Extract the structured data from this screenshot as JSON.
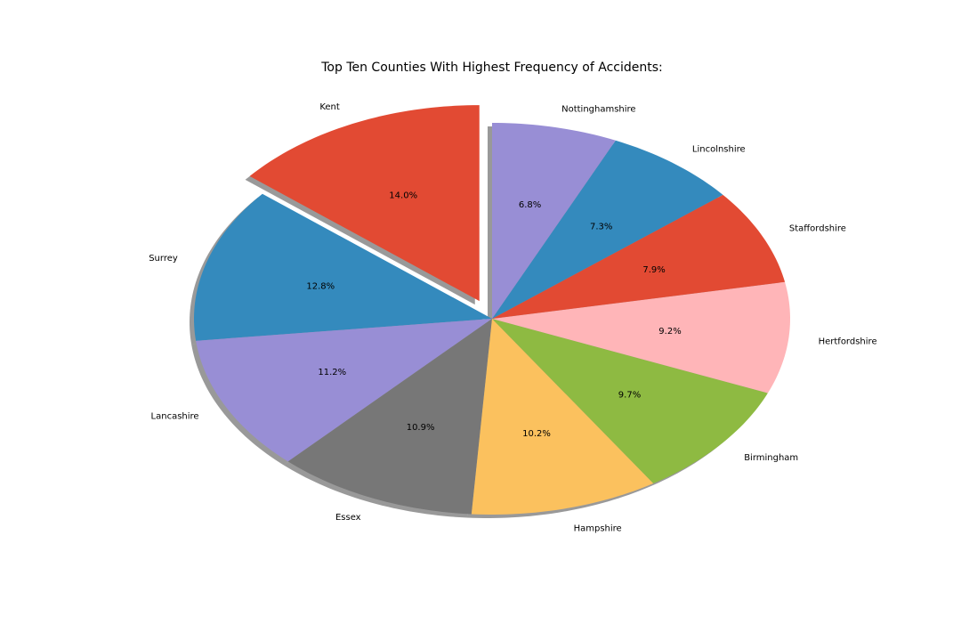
{
  "chart_data": {
    "type": "pie",
    "title": "Top Ten Counties With Highest Frequency of Accidents:",
    "shadow": true,
    "start_angle_deg": 90,
    "direction": "counterclockwise",
    "slices": [
      {
        "label": "Kent",
        "percent": 14.0,
        "pct_text": "14.0%",
        "color": "#E24A33",
        "exploded": true
      },
      {
        "label": "Surrey",
        "percent": 12.8,
        "pct_text": "12.8%",
        "color": "#348ABD",
        "exploded": false
      },
      {
        "label": "Lancashire",
        "percent": 11.2,
        "pct_text": "11.2%",
        "color": "#988ED5",
        "exploded": false
      },
      {
        "label": "Essex",
        "percent": 10.9,
        "pct_text": "10.9%",
        "color": "#777777",
        "exploded": false
      },
      {
        "label": "Hampshire",
        "percent": 10.2,
        "pct_text": "10.2%",
        "color": "#FBC15E",
        "exploded": false
      },
      {
        "label": "Birmingham",
        "percent": 9.7,
        "pct_text": "9.7%",
        "color": "#8EBA42",
        "exploded": false
      },
      {
        "label": "Hertfordshire",
        "percent": 9.2,
        "pct_text": "9.2%",
        "color": "#FFB5B8",
        "exploded": false
      },
      {
        "label": "Staffordshire",
        "percent": 7.9,
        "pct_text": "7.9%",
        "color": "#E24A33",
        "exploded": false
      },
      {
        "label": "Lincolnshire",
        "percent": 7.3,
        "pct_text": "7.3%",
        "color": "#348ABD",
        "exploded": false
      },
      {
        "label": "Nottinghamshire",
        "percent": 6.8,
        "pct_text": "6.8%",
        "color": "#988ED5",
        "exploded": false
      }
    ]
  }
}
